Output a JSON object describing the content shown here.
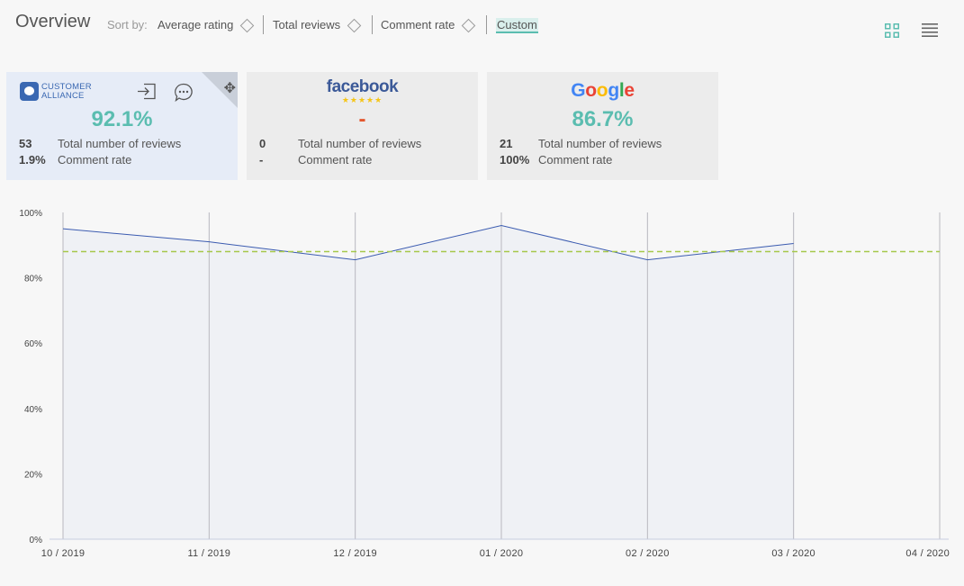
{
  "header": {
    "title": "Overview",
    "sort_by_label": "Sort by:",
    "sort_options": [
      {
        "label": "Average rating"
      },
      {
        "label": "Total reviews"
      },
      {
        "label": "Comment rate"
      }
    ],
    "custom_label": "Custom",
    "view_icons": [
      "grid-view-icon",
      "list-view-icon"
    ]
  },
  "cards": [
    {
      "source": "Customer Alliance",
      "logo_lines": [
        "CUSTOMER",
        "ALLIANCE"
      ],
      "score": "92.1%",
      "reviews_count": "53",
      "reviews_label": "Total number of reviews",
      "comment_rate": "1.9%",
      "comment_rate_label": "Comment rate",
      "icons": [
        "login-icon",
        "comment-icon",
        "move-icon"
      ]
    },
    {
      "source": "facebook",
      "logo_text": "facebook",
      "logo_stars": "★★★★★",
      "score": "-",
      "reviews_count": "0",
      "reviews_label": "Total number of reviews",
      "comment_rate": "-",
      "comment_rate_label": "Comment rate"
    },
    {
      "source": "Google",
      "logo_text": "Google",
      "score": "86.7%",
      "reviews_count": "21",
      "reviews_label": "Total number of reviews",
      "comment_rate": "100%",
      "comment_rate_label": "Comment rate"
    }
  ],
  "colors": {
    "accent": "#5bbdb0",
    "line": "#3b5bb0",
    "area": "#eff1f5",
    "average_line": "#a6c84a",
    "facebook": "#3b5998",
    "google": [
      "#4285F4",
      "#EA4335",
      "#FBBC05",
      "#4285F4",
      "#34A853",
      "#EA4335"
    ]
  },
  "chart_data": {
    "type": "area",
    "x": [
      "10 / 2019",
      "11 / 2019",
      "12 / 2019",
      "01 / 2020",
      "02 / 2020",
      "03 / 2020",
      "04 / 2020"
    ],
    "series": [
      {
        "values": [
          95,
          91,
          85.5,
          96,
          85.5,
          90.5,
          null
        ]
      }
    ],
    "average_line": 88,
    "yticks": [
      "0%",
      "20%",
      "40%",
      "60%",
      "80%",
      "100%"
    ],
    "ylim": [
      0,
      100
    ],
    "grid": "vertical",
    "title": "",
    "xlabel": "",
    "ylabel": ""
  }
}
